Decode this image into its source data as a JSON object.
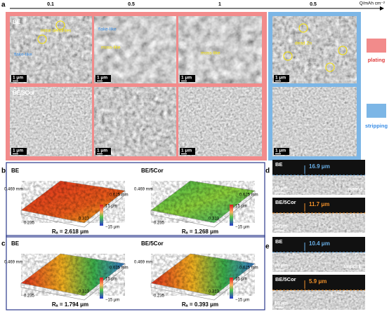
{
  "panel_a": {
    "label": "a",
    "axis_ticks": [
      "0.1",
      "0.5",
      "1",
      "0.5"
    ],
    "axis_title": "Q/mAh cm⁻²",
    "rows": [
      "BE",
      "BE/5Cor"
    ],
    "annotations": [
      "initial dendrites",
      "flake-like",
      "flake-like",
      "moss-like",
      "moss-like",
      "dead Zn"
    ],
    "scale_bar": "1 μm",
    "legend": [
      "plating",
      "stripping"
    ]
  },
  "panel_b": {
    "label": "b",
    "maps": [
      {
        "name": "BE",
        "ra": "Rₐ = 2.618 μm"
      },
      {
        "name": "BE/5Cor",
        "ra": "Rₐ = 1.268 μm"
      }
    ],
    "axis": [
      "0.469 mm",
      "0.235",
      "0.313",
      "0.625 mm"
    ],
    "colorbar": [
      "15 μm",
      "−15 μm"
    ]
  },
  "panel_c": {
    "label": "c",
    "maps": [
      {
        "name": "BE",
        "ra": "Rₐ = 1.794 μm"
      },
      {
        "name": "BE/5Cor",
        "ra": "Rₐ = 0.393 μm"
      }
    ],
    "axis": [
      "0.469 mm",
      "0.235",
      "0.313",
      "0.625 mm"
    ],
    "colorbar": [
      "15 μm",
      "−15 μm"
    ]
  },
  "panel_d": {
    "label": "d",
    "images": [
      {
        "name": "BE",
        "thickness": "16.9 μm",
        "note": "plating"
      },
      {
        "name": "BE/5Cor",
        "thickness": "11.7 μm"
      }
    ],
    "scale_bar": "10 μm"
  },
  "panel_e": {
    "label": "e",
    "images": [
      {
        "name": "BE",
        "thickness": "10.4 μm",
        "note": "stripping"
      },
      {
        "name": "BE/5Cor",
        "thickness": "5.9 μm"
      }
    ],
    "scale_bar": "10 μm"
  }
}
